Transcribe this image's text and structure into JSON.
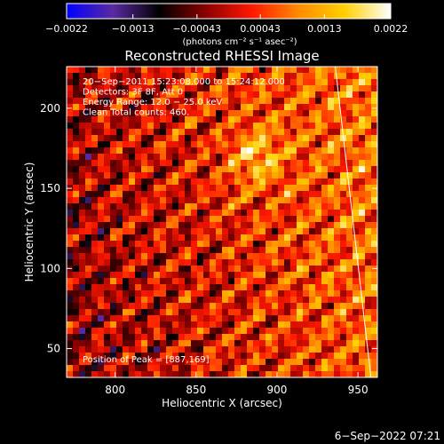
{
  "colorbar": {
    "stops": [
      "#0000ff",
      "#5a2aa0",
      "#000000",
      "#8a0000",
      "#ff1800",
      "#ff8a00",
      "#ffd000",
      "#ffffff"
    ],
    "ticks": [
      {
        "value": -0.0022,
        "label": "−0.0022"
      },
      {
        "value": -0.0013,
        "label": "−0.0013"
      },
      {
        "value": -0.00043,
        "label": "−0.00043"
      },
      {
        "value": 0.00043,
        "label": "0.00043"
      },
      {
        "value": 0.0013,
        "label": "0.0013"
      },
      {
        "value": 0.0022,
        "label": "0.0022"
      }
    ],
    "range": [
      -0.0022,
      0.0022
    ],
    "unit_label": "(photons cm⁻² s⁻¹ asec⁻²)"
  },
  "chart_data": {
    "type": "heatmap",
    "title": "Reconstructed RHESSI Image",
    "xlabel": "Heliocentric X (arcsec)",
    "ylabel": "Heliocentric Y (arcsec)",
    "xlim": [
      770,
      962
    ],
    "ylim": [
      32,
      226
    ],
    "xticks": [
      {
        "value": 800,
        "label": "800"
      },
      {
        "value": 850,
        "label": "850"
      },
      {
        "value": 900,
        "label": "900"
      },
      {
        "value": 950,
        "label": "950"
      }
    ],
    "yticks": [
      {
        "value": 50,
        "label": "50"
      },
      {
        "value": 100,
        "label": "100"
      },
      {
        "value": 150,
        "label": "150"
      },
      {
        "value": 200,
        "label": "200"
      }
    ],
    "annotations": [
      "20−Sep−2011 15:23:08.000 to 15:24:12.000",
      "Detectors: 3F 8F, Att 0",
      "Energy Range: 12.0 − 25.0 keV",
      "Clean    Total counts: 460."
    ],
    "peak_label": "Position of Peak = [887,169]",
    "peak": [
      887,
      169
    ],
    "limb_line": [
      [
        936,
        226
      ],
      [
        958,
        32
      ]
    ]
  },
  "footer": {
    "timestamp": "6−Sep−2022 07:21"
  }
}
